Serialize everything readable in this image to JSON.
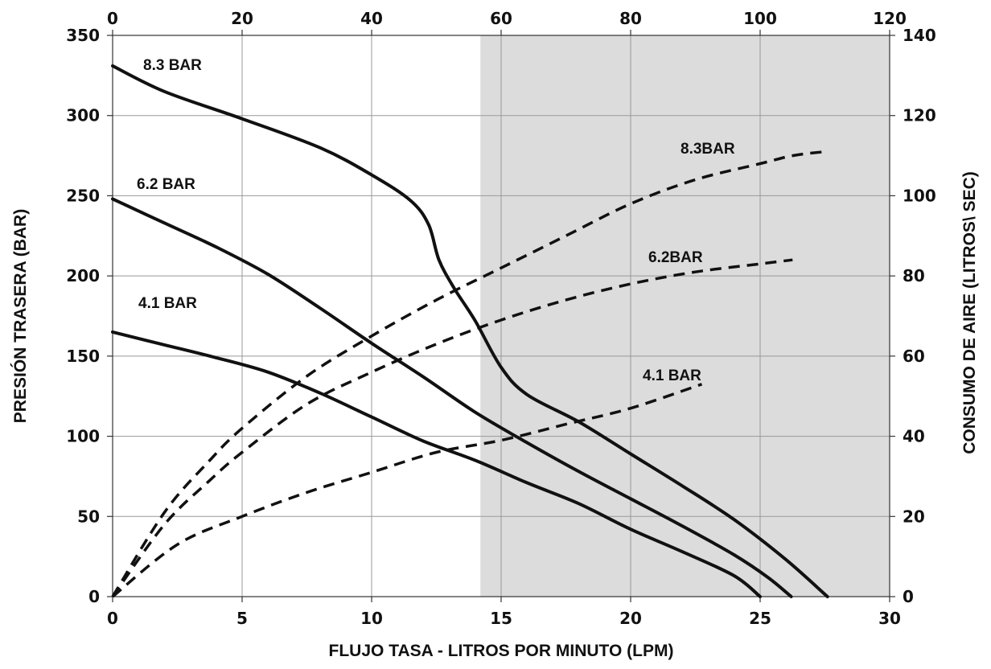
{
  "chart_data": {
    "type": "line",
    "xlabel": "FLUJO TASA -  LITROS POR MINUTO (LPM)",
    "ylabel_left": "PRESIÓN TRASERA  (BAR)",
    "ylabel_right": "CONSUMO DE AIRE (LITROS\\ SEC)",
    "x_bottom": {
      "lim": [
        0,
        30
      ],
      "ticks": [
        "0",
        "5",
        "10",
        "15",
        "20",
        "25",
        "30"
      ]
    },
    "x_top": {
      "lim": [
        0,
        120
      ],
      "ticks": [
        "0",
        "20",
        "40",
        "60",
        "80",
        "100",
        "120"
      ]
    },
    "y_left": {
      "lim": [
        0,
        350
      ],
      "ticks": [
        "0",
        "50",
        "100",
        "150",
        "200",
        "250",
        "300",
        "350"
      ]
    },
    "y_right": {
      "lim": [
        0,
        140
      ],
      "ticks": [
        "0",
        "20",
        "40",
        "60",
        "80",
        "100",
        "120",
        "140"
      ]
    },
    "grid": true,
    "shaded_region_x": [
      14.2,
      30
    ],
    "shade_color": "#dcdcdc",
    "line_color": "#111111",
    "pressure_series": [
      {
        "name": "8.3 BAR",
        "style": "solid",
        "x": [
          0,
          2,
          5,
          8,
          10,
          11.5,
          12.2,
          12.6,
          13.2,
          14,
          15,
          16,
          18,
          20,
          22,
          24,
          26,
          27.6
        ],
        "y": [
          331,
          315,
          298,
          280,
          263,
          247,
          232,
          210,
          192,
          172,
          143,
          126,
          109,
          89,
          69,
          48,
          23,
          0
        ]
      },
      {
        "name": "6.2 BAR",
        "style": "solid",
        "x": [
          0,
          2,
          4,
          6,
          8,
          10,
          12,
          14,
          16,
          18,
          20,
          22,
          24,
          25.3,
          26.2
        ],
        "y": [
          248,
          233,
          218,
          201,
          180,
          158,
          137,
          115,
          96,
          78,
          61,
          44,
          26,
          12,
          0
        ]
      },
      {
        "name": "4.1 BAR",
        "style": "solid",
        "x": [
          0,
          2,
          4,
          6,
          8,
          10,
          12,
          14,
          16,
          18,
          20,
          22,
          24,
          25
        ],
        "y": [
          165,
          157,
          149,
          140,
          127,
          112,
          97,
          85,
          71,
          58,
          42,
          28,
          13,
          0
        ]
      }
    ],
    "air_consumption_series": [
      {
        "name": "8.3BAR",
        "style": "dashed",
        "x": [
          0,
          8,
          15,
          20,
          30,
          40,
          50,
          60,
          70,
          80,
          90,
          100,
          105,
          110
        ],
        "y": [
          0,
          21,
          34,
          42,
          55,
          65,
          74,
          82,
          90,
          98,
          104,
          108,
          110,
          111
        ]
      },
      {
        "name": "6.2BAR",
        "style": "dashed",
        "x": [
          0,
          8,
          15,
          20,
          30,
          40,
          50,
          60,
          70,
          80,
          90,
          100,
          105
        ],
        "y": [
          0,
          18,
          29,
          36,
          48,
          56,
          63,
          69,
          74,
          78,
          81,
          83,
          84
        ]
      },
      {
        "name": "4.1 BAR",
        "style": "dashed",
        "x": [
          0,
          10,
          20,
          30,
          40,
          50,
          60,
          70,
          80,
          91
        ],
        "y": [
          0,
          13,
          20,
          26,
          31,
          36,
          39,
          43,
          47,
          53
        ]
      }
    ]
  }
}
